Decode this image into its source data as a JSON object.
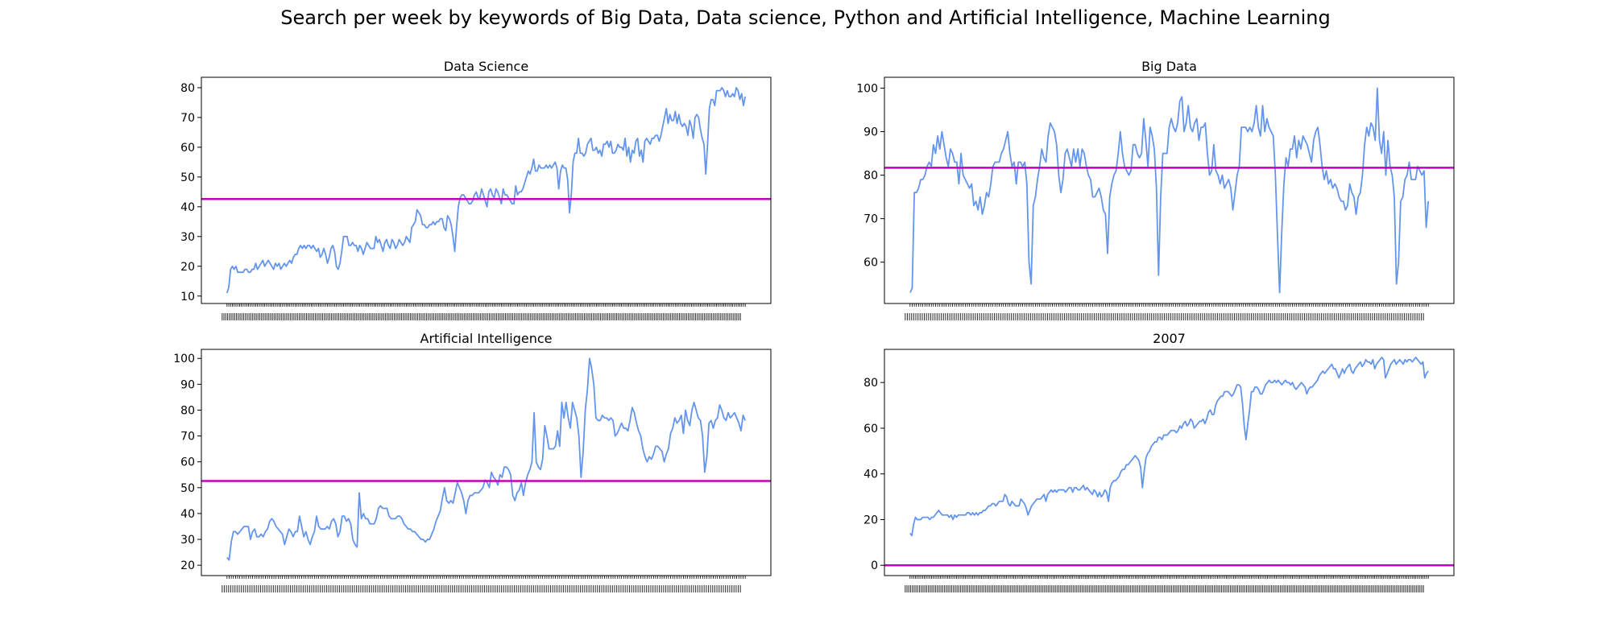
{
  "suptitle": "Search per week by keywords of Big Data, Data science, Python and Artificial Intelligence, Machine Learning",
  "colors": {
    "line": "#6495ED",
    "mean_line": "#BF00BF",
    "axes": "#000000"
  },
  "chart_data": [
    {
      "type": "line",
      "title": "Data Science",
      "xlabel": "",
      "ylabel": "",
      "yticks": [
        10,
        20,
        30,
        40,
        50,
        60,
        70,
        80
      ],
      "ylim": [
        7.5,
        83.5
      ],
      "x_tick_labels": "dense weekly date labels (overlapping, illegible)",
      "mean": 42.6,
      "series": [
        {
          "values": [
            11,
            13,
            19,
            20,
            19,
            20,
            18,
            18,
            18,
            18,
            19,
            19,
            18,
            18,
            19,
            19,
            21,
            19,
            20,
            21,
            22,
            20,
            21,
            22,
            21,
            20,
            19,
            21,
            20,
            21,
            19,
            20,
            21,
            20,
            21,
            22,
            21,
            23,
            24,
            24,
            26,
            27,
            26,
            27,
            26,
            27,
            27,
            26,
            27,
            26,
            25,
            26,
            23,
            24,
            26,
            24,
            21,
            23,
            26,
            27,
            25,
            20,
            19,
            21,
            25,
            30,
            30,
            30,
            27,
            27,
            28,
            27,
            27,
            25,
            27,
            26,
            24,
            26,
            28,
            27,
            26,
            26,
            26,
            30,
            28,
            29,
            27,
            25,
            28,
            29,
            27,
            26,
            29,
            28,
            26,
            27,
            29,
            28,
            27,
            28,
            30,
            29,
            28,
            33,
            34,
            35,
            39,
            38,
            37,
            34,
            34,
            33,
            33,
            34,
            34,
            35,
            34,
            35,
            35,
            36,
            36,
            33,
            32,
            37,
            36,
            34,
            30,
            25,
            33,
            40,
            43,
            44,
            44,
            43,
            42,
            41,
            41,
            42,
            44,
            45,
            43,
            43,
            46,
            44,
            42,
            40,
            45,
            46,
            44,
            43,
            46,
            45,
            43,
            41,
            46,
            44,
            44,
            43,
            42,
            41,
            41,
            47,
            44,
            45,
            45,
            46,
            48,
            50,
            52,
            51,
            53,
            56,
            52,
            52,
            54,
            53,
            53,
            53,
            54,
            53,
            54,
            53,
            54,
            55,
            53,
            46,
            52,
            54,
            53,
            53,
            49,
            38,
            44,
            55,
            58,
            58,
            63,
            58,
            58,
            57,
            58,
            61,
            62,
            63,
            59,
            59,
            60,
            58,
            59,
            57,
            61,
            61,
            62,
            60,
            62,
            58,
            58,
            59,
            61,
            60,
            60,
            59,
            63,
            57,
            60,
            55,
            59,
            58,
            62,
            63,
            57,
            59,
            55,
            62,
            63,
            62,
            61,
            63,
            63,
            64,
            64,
            62,
            64,
            67,
            70,
            73,
            68,
            71,
            69,
            69,
            72,
            68,
            71,
            68,
            67,
            68,
            67,
            64,
            69,
            67,
            63,
            70,
            71,
            70,
            66,
            63,
            61,
            51,
            61,
            73,
            76,
            76,
            74,
            79,
            79,
            79,
            80,
            79,
            77,
            79,
            77,
            77,
            78,
            77,
            80,
            79,
            76,
            78,
            74,
            77
          ]
        }
      ]
    },
    {
      "type": "line",
      "title": "Big Data",
      "xlabel": "",
      "ylabel": "",
      "yticks": [
        60,
        70,
        80,
        90,
        100
      ],
      "ylim": [
        50.5,
        102.5
      ],
      "x_tick_labels": "dense weekly date labels (overlapping, illegible)",
      "mean": 81.7,
      "series": [
        {
          "values": [
            53,
            54,
            76,
            76,
            77,
            79,
            79,
            80,
            82,
            83,
            82,
            87,
            85,
            89,
            86,
            90,
            87,
            84,
            82,
            86,
            85,
            83,
            83,
            78,
            85,
            80,
            79,
            78,
            77,
            78,
            73,
            74,
            72,
            75,
            71,
            73,
            76,
            75,
            78,
            82,
            83,
            83,
            83,
            85,
            86,
            88,
            90,
            85,
            82,
            83,
            78,
            83,
            83,
            82,
            83,
            78,
            60,
            55,
            73,
            75,
            79,
            82,
            86,
            84,
            83,
            89,
            92,
            91,
            90,
            87,
            80,
            76,
            79,
            85,
            86,
            84,
            82,
            86,
            83,
            86,
            82,
            86,
            85,
            82,
            80,
            79,
            75,
            75,
            76,
            77,
            75,
            72,
            71,
            62,
            75,
            78,
            80,
            81,
            85,
            90,
            85,
            82,
            81,
            80,
            81,
            87,
            87,
            85,
            84,
            85,
            93,
            88,
            82,
            91,
            89,
            86,
            77,
            57,
            75,
            85,
            85,
            85,
            91,
            93,
            91,
            90,
            92,
            97,
            98,
            90,
            92,
            96,
            91,
            90,
            92,
            93,
            88,
            91,
            91,
            92,
            85,
            80,
            81,
            87,
            81,
            80,
            78,
            80,
            77,
            78,
            79,
            77,
            72,
            76,
            80,
            82,
            91,
            91,
            91,
            90,
            91,
            90,
            92,
            96,
            91,
            89,
            96,
            90,
            93,
            91,
            90,
            89,
            80,
            66,
            53,
            67,
            78,
            84,
            82,
            86,
            86,
            89,
            84,
            88,
            86,
            89,
            88,
            87,
            85,
            83,
            88,
            90,
            91,
            87,
            82,
            79,
            81,
            78,
            79,
            77,
            78,
            77,
            75,
            74,
            74,
            72,
            73,
            78,
            76,
            75,
            71,
            75,
            76,
            80,
            87,
            91,
            89,
            92,
            91,
            88,
            100,
            88,
            85,
            90,
            80,
            88,
            82,
            80,
            75,
            55,
            60,
            74,
            75,
            79,
            80,
            83,
            79,
            79,
            79,
            82,
            81,
            80,
            81,
            68,
            74
          ]
        }
      ]
    },
    {
      "type": "line",
      "title": "Artificial Intelligence",
      "xlabel": "",
      "ylabel": "",
      "yticks": [
        20,
        30,
        40,
        50,
        60,
        70,
        80,
        90,
        100
      ],
      "ylim": [
        16.0,
        103.5
      ],
      "x_tick_labels": "dense weekly date labels (overlapping, illegible)",
      "mean": 52.6,
      "series": [
        {
          "values": [
            23,
            22,
            29,
            33,
            33,
            32,
            33,
            34,
            35,
            35,
            35,
            30,
            33,
            34,
            31,
            31,
            32,
            31,
            33,
            34,
            37,
            38,
            37,
            35,
            34,
            33,
            32,
            28,
            31,
            34,
            33,
            31,
            33,
            33,
            39,
            35,
            31,
            33,
            30,
            28,
            31,
            33,
            39,
            35,
            34,
            34,
            34,
            35,
            34,
            37,
            38,
            36,
            31,
            33,
            39,
            39,
            37,
            38,
            36,
            30,
            28,
            27,
            48,
            38,
            40,
            38,
            38,
            36,
            36,
            36,
            38,
            42,
            43,
            42,
            42,
            42,
            39,
            38,
            38,
            38,
            39,
            39,
            38,
            36,
            35,
            34,
            34,
            33,
            33,
            32,
            31,
            30,
            30,
            29,
            30,
            30,
            32,
            34,
            37,
            39,
            41,
            46,
            50,
            45,
            44,
            45,
            44,
            48,
            52,
            50,
            48,
            45,
            40,
            45,
            47,
            47,
            48,
            48,
            48,
            49,
            50,
            53,
            52,
            50,
            56,
            54,
            53,
            51,
            55,
            54,
            58,
            58,
            57,
            55,
            47,
            45,
            48,
            49,
            52,
            47,
            52,
            55,
            57,
            60,
            79,
            60,
            58,
            57,
            61,
            74,
            70,
            65,
            65,
            65,
            66,
            72,
            66,
            83,
            77,
            83,
            77,
            73,
            83,
            80,
            77,
            70,
            54,
            64,
            80,
            88,
            100,
            96,
            90,
            77,
            76,
            76,
            78,
            77,
            77,
            76,
            77,
            76,
            70,
            71,
            73,
            75,
            73,
            73,
            72,
            76,
            81,
            79,
            75,
            72,
            70,
            65,
            62,
            60,
            62,
            61,
            63,
            66,
            66,
            65,
            64,
            60,
            63,
            65,
            71,
            73,
            77,
            75,
            76,
            78,
            71,
            80,
            76,
            74,
            80,
            83,
            80,
            77,
            76,
            70,
            56,
            62,
            75,
            76,
            73,
            76,
            77,
            82,
            80,
            77,
            76,
            79,
            77,
            78,
            79,
            77,
            75,
            72,
            78,
            76
          ]
        }
      ]
    },
    {
      "type": "line",
      "title": "2007",
      "xlabel": "",
      "ylabel": "",
      "yticks": [
        0,
        20,
        40,
        60,
        80
      ],
      "ylim": [
        -4.5,
        94.5
      ],
      "x_tick_labels": "dense weekly date labels (overlapping, illegible)",
      "mean": 0,
      "series": [
        {
          "values": [
            14,
            13,
            18,
            21,
            20,
            20,
            20,
            21,
            21,
            21,
            21,
            20,
            21,
            21,
            22,
            23,
            24,
            23,
            22,
            22,
            22,
            22,
            21,
            22,
            20,
            22,
            21,
            22,
            22,
            22,
            22,
            22,
            23,
            23,
            22,
            23,
            22,
            23,
            22,
            23,
            23,
            24,
            24,
            25,
            26,
            26,
            27,
            27,
            26,
            27,
            28,
            28,
            28,
            31,
            30,
            27,
            26,
            28,
            27,
            26,
            26,
            26,
            29,
            28,
            27,
            25,
            22,
            24,
            26,
            27,
            28,
            29,
            29,
            29,
            30,
            31,
            28,
            31,
            32,
            33,
            32,
            33,
            32,
            33,
            33,
            33,
            33,
            32,
            33,
            34,
            34,
            32,
            34,
            34,
            33,
            33,
            34,
            35,
            33,
            34,
            33,
            32,
            31,
            33,
            32,
            30,
            32,
            30,
            31,
            33,
            32,
            28,
            34,
            36,
            37,
            37,
            38,
            39,
            41,
            42,
            42,
            44,
            44,
            45,
            46,
            47,
            48,
            47,
            46,
            43,
            34,
            41,
            47,
            49,
            50,
            52,
            53,
            54,
            54,
            56,
            56,
            55,
            57,
            57,
            57,
            58,
            59,
            59,
            59,
            58,
            59,
            61,
            60,
            62,
            63,
            61,
            62,
            64,
            63,
            60,
            61,
            62,
            63,
            63,
            64,
            62,
            64,
            67,
            68,
            66,
            66,
            70,
            72,
            73,
            74,
            74,
            76,
            76,
            76,
            75,
            74,
            75,
            77,
            79,
            79,
            78,
            71,
            61,
            55,
            62,
            68,
            76,
            76,
            78,
            78,
            77,
            75,
            75,
            77,
            79,
            80,
            81,
            80,
            80,
            81,
            80,
            81,
            80,
            79,
            80,
            81,
            80,
            80,
            79,
            80,
            78,
            77,
            78,
            79,
            80,
            79,
            78,
            75,
            77,
            78,
            78,
            79,
            80,
            81,
            83,
            84,
            85,
            84,
            85,
            86,
            87,
            88,
            86,
            86,
            84,
            82,
            84,
            86,
            84,
            86,
            87,
            88,
            85,
            84,
            86,
            87,
            88,
            89,
            87,
            88,
            90,
            89,
            89,
            88,
            90,
            86,
            88,
            89,
            90,
            91,
            90,
            82,
            84,
            86,
            88,
            89,
            90,
            88,
            89,
            90,
            89,
            88,
            90,
            89,
            90,
            90,
            89,
            90,
            91,
            90,
            89,
            88,
            89,
            82,
            84,
            85
          ]
        }
      ]
    }
  ]
}
